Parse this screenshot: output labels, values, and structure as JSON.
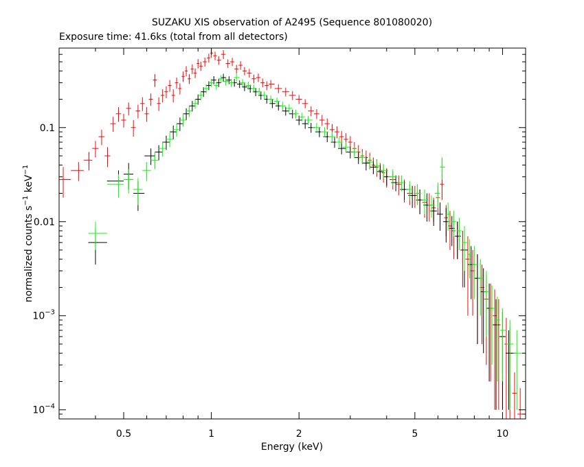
{
  "chart_data": {
    "type": "scatter",
    "title": "SUZAKU XIS observation of A2495 (Sequence 801080020)",
    "subtitle": "Exposure time: 41.6ks (total from all detectors)",
    "xlabel": "Energy (keV)",
    "ylabel_main": "normalized counts s",
    "ylabel_mid": " keV",
    "ylabel_exp": "−1",
    "x_scale": "log",
    "y_scale": "log",
    "xlim": [
      0.3,
      12.0
    ],
    "ylim": [
      8e-05,
      0.7
    ],
    "x_ticks": [
      {
        "value": 0.5,
        "label": "0.5"
      },
      {
        "value": 1,
        "label": "1"
      },
      {
        "value": 2,
        "label": "2"
      },
      {
        "value": 5,
        "label": "5"
      },
      {
        "value": 10,
        "label": "10"
      }
    ],
    "y_ticks": [
      {
        "value": 0.1,
        "label": "0.1"
      },
      {
        "value": 0.01,
        "label": "0.01"
      },
      {
        "value": 0.001,
        "base": "10",
        "exp": "−3"
      },
      {
        "value": 0.0001,
        "base": "10",
        "exp": "−4"
      }
    ],
    "grid": false,
    "legend": "none",
    "series": [
      {
        "color": "#ff0000",
        "points": [
          [
            0.31,
            0.028,
            0.01
          ],
          [
            0.35,
            0.035,
            0.008
          ],
          [
            0.38,
            0.045,
            0.01
          ],
          [
            0.4,
            0.06,
            0.012
          ],
          [
            0.42,
            0.08,
            0.015
          ],
          [
            0.44,
            0.05,
            0.012
          ],
          [
            0.46,
            0.11,
            0.02
          ],
          [
            0.48,
            0.14,
            0.025
          ],
          [
            0.5,
            0.12,
            0.02
          ],
          [
            0.52,
            0.16,
            0.025
          ],
          [
            0.54,
            0.1,
            0.02
          ],
          [
            0.56,
            0.15,
            0.025
          ],
          [
            0.58,
            0.18,
            0.03
          ],
          [
            0.6,
            0.14,
            0.025
          ],
          [
            0.62,
            0.2,
            0.03
          ],
          [
            0.64,
            0.32,
            0.05
          ],
          [
            0.66,
            0.18,
            0.03
          ],
          [
            0.68,
            0.22,
            0.035
          ],
          [
            0.7,
            0.24,
            0.035
          ],
          [
            0.72,
            0.28,
            0.04
          ],
          [
            0.74,
            0.22,
            0.035
          ],
          [
            0.76,
            0.3,
            0.04
          ],
          [
            0.78,
            0.26,
            0.035
          ],
          [
            0.8,
            0.35,
            0.045
          ],
          [
            0.82,
            0.4,
            0.05
          ],
          [
            0.84,
            0.33,
            0.04
          ],
          [
            0.86,
            0.42,
            0.05
          ],
          [
            0.88,
            0.38,
            0.045
          ],
          [
            0.9,
            0.48,
            0.055
          ],
          [
            0.92,
            0.45,
            0.05
          ],
          [
            0.95,
            0.5,
            0.055
          ],
          [
            0.98,
            0.55,
            0.06
          ],
          [
            1.0,
            0.62,
            0.07
          ],
          [
            1.03,
            0.58,
            0.06
          ],
          [
            1.06,
            0.52,
            0.055
          ],
          [
            1.1,
            0.6,
            0.065
          ],
          [
            1.14,
            0.48,
            0.05
          ],
          [
            1.18,
            0.5,
            0.05
          ],
          [
            1.22,
            0.42,
            0.045
          ],
          [
            1.26,
            0.46,
            0.048
          ],
          [
            1.3,
            0.4,
            0.04
          ],
          [
            1.35,
            0.38,
            0.04
          ],
          [
            1.4,
            0.33,
            0.035
          ],
          [
            1.45,
            0.34,
            0.035
          ],
          [
            1.5,
            0.3,
            0.032
          ],
          [
            1.55,
            0.28,
            0.03
          ],
          [
            1.6,
            0.29,
            0.03
          ],
          [
            1.7,
            0.26,
            0.028
          ],
          [
            1.8,
            0.24,
            0.026
          ],
          [
            1.9,
            0.22,
            0.024
          ],
          [
            2.0,
            0.2,
            0.022
          ],
          [
            2.1,
            0.18,
            0.02
          ],
          [
            2.2,
            0.15,
            0.018
          ],
          [
            2.3,
            0.14,
            0.017
          ],
          [
            2.4,
            0.12,
            0.016
          ],
          [
            2.5,
            0.11,
            0.015
          ],
          [
            2.6,
            0.095,
            0.014
          ],
          [
            2.7,
            0.09,
            0.013
          ],
          [
            2.8,
            0.08,
            0.012
          ],
          [
            2.9,
            0.075,
            0.012
          ],
          [
            3.0,
            0.07,
            0.011
          ],
          [
            3.1,
            0.06,
            0.01
          ],
          [
            3.2,
            0.055,
            0.01
          ],
          [
            3.3,
            0.05,
            0.009
          ],
          [
            3.4,
            0.048,
            0.009
          ],
          [
            3.5,
            0.045,
            0.009
          ],
          [
            3.6,
            0.04,
            0.008
          ],
          [
            3.7,
            0.038,
            0.008
          ],
          [
            3.8,
            0.035,
            0.007
          ],
          [
            3.9,
            0.033,
            0.007
          ],
          [
            4.0,
            0.03,
            0.007
          ],
          [
            4.2,
            0.028,
            0.006
          ],
          [
            4.4,
            0.025,
            0.006
          ],
          [
            4.6,
            0.022,
            0.006
          ],
          [
            4.8,
            0.02,
            0.005
          ],
          [
            5.0,
            0.019,
            0.005
          ],
          [
            5.2,
            0.017,
            0.005
          ],
          [
            5.4,
            0.016,
            0.005
          ],
          [
            5.6,
            0.015,
            0.005
          ],
          [
            5.8,
            0.014,
            0.004
          ],
          [
            6.0,
            0.018,
            0.006
          ],
          [
            6.2,
            0.025,
            0.008
          ],
          [
            6.4,
            0.011,
            0.004
          ],
          [
            6.6,
            0.009,
            0.004
          ],
          [
            6.8,
            0.008,
            0.004
          ],
          [
            7.0,
            0.007,
            0.003
          ],
          [
            7.3,
            0.005,
            0.003
          ],
          [
            7.6,
            0.004,
            0.003
          ],
          [
            7.9,
            0.003,
            0.002
          ],
          [
            8.2,
            0.0025,
            0.002
          ],
          [
            8.5,
            0.002,
            0.0015
          ],
          [
            8.8,
            0.0015,
            0.0012
          ],
          [
            9.1,
            0.0012,
            0.001
          ],
          [
            9.4,
            0.001,
            0.0009
          ],
          [
            9.7,
            0.0008,
            0.0007
          ],
          [
            10.0,
            0.0006,
            0.0005
          ],
          [
            10.3,
            0.0005,
            0.00045
          ],
          [
            10.6,
            0.0004,
            0.00035
          ],
          [
            11.0,
            0.00015,
            0.0001
          ],
          [
            11.5,
            9e-05,
            8e-05
          ]
        ]
      },
      {
        "color": "#000000",
        "points": [
          [
            0.4,
            0.006,
            0.0025
          ],
          [
            0.48,
            0.027,
            0.008
          ],
          [
            0.52,
            0.032,
            0.01
          ],
          [
            0.56,
            0.02,
            0.007
          ],
          [
            0.62,
            0.05,
            0.01
          ],
          [
            0.66,
            0.055,
            0.01
          ],
          [
            0.7,
            0.07,
            0.012
          ],
          [
            0.74,
            0.09,
            0.015
          ],
          [
            0.78,
            0.11,
            0.018
          ],
          [
            0.82,
            0.14,
            0.02
          ],
          [
            0.86,
            0.17,
            0.022
          ],
          [
            0.9,
            0.2,
            0.025
          ],
          [
            0.94,
            0.24,
            0.028
          ],
          [
            0.98,
            0.28,
            0.03
          ],
          [
            1.02,
            0.32,
            0.032
          ],
          [
            1.06,
            0.3,
            0.03
          ],
          [
            1.1,
            0.34,
            0.033
          ],
          [
            1.15,
            0.32,
            0.03
          ],
          [
            1.2,
            0.3,
            0.028
          ],
          [
            1.25,
            0.29,
            0.027
          ],
          [
            1.3,
            0.27,
            0.026
          ],
          [
            1.36,
            0.26,
            0.025
          ],
          [
            1.42,
            0.24,
            0.024
          ],
          [
            1.48,
            0.22,
            0.022
          ],
          [
            1.55,
            0.2,
            0.02
          ],
          [
            1.62,
            0.18,
            0.019
          ],
          [
            1.7,
            0.17,
            0.018
          ],
          [
            1.8,
            0.15,
            0.016
          ],
          [
            1.9,
            0.14,
            0.015
          ],
          [
            2.0,
            0.12,
            0.014
          ],
          [
            2.1,
            0.11,
            0.013
          ],
          [
            2.2,
            0.1,
            0.012
          ],
          [
            2.35,
            0.09,
            0.011
          ],
          [
            2.5,
            0.08,
            0.01
          ],
          [
            2.65,
            0.07,
            0.009
          ],
          [
            2.8,
            0.06,
            0.008
          ],
          [
            3.0,
            0.055,
            0.008
          ],
          [
            3.2,
            0.048,
            0.007
          ],
          [
            3.4,
            0.042,
            0.007
          ],
          [
            3.6,
            0.038,
            0.006
          ],
          [
            3.8,
            0.034,
            0.006
          ],
          [
            4.0,
            0.03,
            0.006
          ],
          [
            4.3,
            0.026,
            0.005
          ],
          [
            4.6,
            0.022,
            0.005
          ],
          [
            4.9,
            0.019,
            0.005
          ],
          [
            5.2,
            0.017,
            0.005
          ],
          [
            5.5,
            0.015,
            0.005
          ],
          [
            5.8,
            0.013,
            0.004
          ],
          [
            6.1,
            0.012,
            0.004
          ],
          [
            6.4,
            0.01,
            0.004
          ],
          [
            6.7,
            0.0085,
            0.003
          ],
          [
            7.0,
            0.007,
            0.003
          ],
          [
            7.4,
            0.005,
            0.003
          ],
          [
            7.8,
            0.0035,
            0.002
          ],
          [
            8.2,
            0.0025,
            0.002
          ],
          [
            8.6,
            0.0018,
            0.0014
          ],
          [
            9.0,
            0.0012,
            0.001
          ],
          [
            9.5,
            0.0008,
            0.0007
          ],
          [
            10.0,
            0.0006,
            0.0005
          ],
          [
            10.5,
            0.0004,
            0.0003
          ]
        ]
      },
      {
        "color": "#00ff00",
        "points": [
          [
            0.4,
            0.0075,
            0.0025
          ],
          [
            0.48,
            0.025,
            0.007
          ],
          [
            0.52,
            0.028,
            0.008
          ],
          [
            0.56,
            0.022,
            0.007
          ],
          [
            0.6,
            0.035,
            0.008
          ],
          [
            0.64,
            0.045,
            0.009
          ],
          [
            0.68,
            0.06,
            0.011
          ],
          [
            0.72,
            0.075,
            0.013
          ],
          [
            0.76,
            0.095,
            0.015
          ],
          [
            0.8,
            0.12,
            0.018
          ],
          [
            0.84,
            0.15,
            0.02
          ],
          [
            0.88,
            0.18,
            0.022
          ],
          [
            0.92,
            0.22,
            0.025
          ],
          [
            0.96,
            0.26,
            0.028
          ],
          [
            1.0,
            0.3,
            0.03
          ],
          [
            1.04,
            0.28,
            0.028
          ],
          [
            1.08,
            0.33,
            0.032
          ],
          [
            1.12,
            0.31,
            0.03
          ],
          [
            1.17,
            0.3,
            0.029
          ],
          [
            1.22,
            0.34,
            0.032
          ],
          [
            1.28,
            0.3,
            0.028
          ],
          [
            1.34,
            0.28,
            0.027
          ],
          [
            1.4,
            0.26,
            0.026
          ],
          [
            1.46,
            0.24,
            0.024
          ],
          [
            1.52,
            0.22,
            0.022
          ],
          [
            1.6,
            0.2,
            0.02
          ],
          [
            1.68,
            0.19,
            0.019
          ],
          [
            1.76,
            0.17,
            0.018
          ],
          [
            1.85,
            0.16,
            0.017
          ],
          [
            1.95,
            0.14,
            0.015
          ],
          [
            2.05,
            0.13,
            0.014
          ],
          [
            2.15,
            0.12,
            0.013
          ],
          [
            2.3,
            0.1,
            0.012
          ],
          [
            2.45,
            0.09,
            0.011
          ],
          [
            2.6,
            0.08,
            0.01
          ],
          [
            2.75,
            0.07,
            0.009
          ],
          [
            2.9,
            0.062,
            0.008
          ],
          [
            3.1,
            0.055,
            0.008
          ],
          [
            3.3,
            0.048,
            0.007
          ],
          [
            3.5,
            0.043,
            0.007
          ],
          [
            3.7,
            0.039,
            0.006
          ],
          [
            3.9,
            0.035,
            0.006
          ],
          [
            4.2,
            0.03,
            0.006
          ],
          [
            4.5,
            0.026,
            0.005
          ],
          [
            4.8,
            0.022,
            0.005
          ],
          [
            5.1,
            0.02,
            0.005
          ],
          [
            5.4,
            0.017,
            0.005
          ],
          [
            5.7,
            0.015,
            0.004
          ],
          [
            6.0,
            0.02,
            0.006
          ],
          [
            6.2,
            0.038,
            0.01
          ],
          [
            6.5,
            0.012,
            0.004
          ],
          [
            6.8,
            0.01,
            0.003
          ],
          [
            7.1,
            0.008,
            0.003
          ],
          [
            7.4,
            0.006,
            0.003
          ],
          [
            7.7,
            0.0045,
            0.002
          ],
          [
            8.0,
            0.0035,
            0.002
          ],
          [
            8.4,
            0.0025,
            0.0015
          ],
          [
            8.8,
            0.0018,
            0.0012
          ],
          [
            9.2,
            0.0012,
            0.0009
          ],
          [
            9.6,
            0.0009,
            0.0007
          ],
          [
            10.0,
            0.0007,
            0.0005
          ],
          [
            10.6,
            0.0005,
            0.0004
          ],
          [
            11.2,
            0.0004,
            0.0003
          ]
        ]
      }
    ]
  }
}
